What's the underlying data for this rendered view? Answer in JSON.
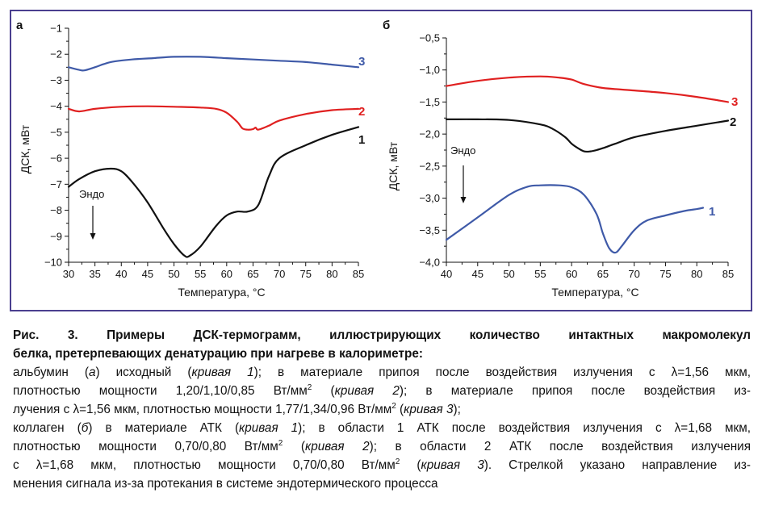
{
  "chart_data": [
    {
      "type": "line",
      "panel_label": "а",
      "xlabel": "Температура, °С",
      "ylabel": "ДСК, мВт",
      "xlim": [
        30,
        85
      ],
      "ylim": [
        -10,
        -1
      ],
      "xticks": [
        "30",
        "35",
        "40",
        "45",
        "50",
        "55",
        "60",
        "65",
        "70",
        "75",
        "80",
        "85"
      ],
      "yticks": [
        "−1",
        "−2",
        "−3",
        "−4",
        "−5",
        "−6",
        "−7",
        "−8",
        "−9",
        "−10"
      ],
      "annotation": "Эндо",
      "grid": false,
      "series": [
        {
          "label": "3",
          "color": "#3f5aa8",
          "x": [
            30,
            32,
            33,
            35,
            38,
            42,
            46,
            50,
            55,
            60,
            65,
            70,
            75,
            80,
            85
          ],
          "y": [
            -2.5,
            -2.6,
            -2.62,
            -2.5,
            -2.3,
            -2.2,
            -2.15,
            -2.1,
            -2.1,
            -2.15,
            -2.2,
            -2.25,
            -2.3,
            -2.4,
            -2.5
          ]
        },
        {
          "label": "2",
          "color": "#e02020",
          "x": [
            30,
            32,
            35,
            40,
            45,
            50,
            55,
            58,
            60,
            62,
            63,
            64,
            65,
            65.5,
            66,
            68,
            70,
            75,
            80,
            85
          ],
          "y": [
            -4.1,
            -4.2,
            -4.1,
            -4.02,
            -4.0,
            -4.02,
            -4.05,
            -4.1,
            -4.25,
            -4.6,
            -4.85,
            -4.9,
            -4.88,
            -4.82,
            -4.9,
            -4.75,
            -4.55,
            -4.3,
            -4.15,
            -4.1
          ]
        },
        {
          "label": "1",
          "color": "#111111",
          "x": [
            30,
            32,
            35,
            38,
            40,
            42,
            45,
            48,
            50,
            52,
            53,
            55,
            58,
            60,
            62,
            64,
            66,
            68,
            70,
            75,
            80,
            85
          ],
          "y": [
            -7.1,
            -6.8,
            -6.5,
            -6.4,
            -6.5,
            -6.9,
            -7.7,
            -8.7,
            -9.3,
            -9.75,
            -9.75,
            -9.4,
            -8.6,
            -8.2,
            -8.05,
            -8.05,
            -7.8,
            -6.7,
            -6.0,
            -5.5,
            -5.1,
            -4.8
          ]
        }
      ]
    },
    {
      "type": "line",
      "panel_label": "б",
      "xlabel": "Температура, °С",
      "ylabel": "ДСК, мВт",
      "xlim": [
        40,
        85
      ],
      "ylim": [
        -4.0,
        -0.5
      ],
      "xticks": [
        "40",
        "45",
        "50",
        "55",
        "60",
        "65",
        "70",
        "75",
        "80",
        "85"
      ],
      "yticks": [
        "−0,5",
        "−1,0",
        "−1,5",
        "−2,0",
        "−2,5",
        "−3,0",
        "−3,5",
        "−4,0"
      ],
      "annotation": "Эндо",
      "grid": false,
      "series": [
        {
          "label": "3",
          "color": "#e02020",
          "x": [
            40,
            45,
            50,
            55,
            58,
            60,
            62,
            65,
            70,
            75,
            80,
            85
          ],
          "y": [
            -1.25,
            -1.17,
            -1.12,
            -1.1,
            -1.12,
            -1.15,
            -1.22,
            -1.28,
            -1.32,
            -1.36,
            -1.42,
            -1.5
          ]
        },
        {
          "label": "2",
          "color": "#111111",
          "x": [
            40,
            45,
            50,
            55,
            57,
            59,
            60,
            61,
            62,
            63,
            64,
            65,
            67,
            70,
            75,
            80,
            85
          ],
          "y": [
            -1.77,
            -1.77,
            -1.78,
            -1.85,
            -1.92,
            -2.05,
            -2.15,
            -2.22,
            -2.27,
            -2.27,
            -2.25,
            -2.22,
            -2.15,
            -2.05,
            -1.95,
            -1.87,
            -1.79
          ]
        },
        {
          "label": "1",
          "color": "#3f5aa8",
          "x": [
            40,
            45,
            50,
            53,
            55,
            58,
            60,
            62,
            64,
            65,
            66,
            67,
            68,
            70,
            72,
            75,
            78,
            80,
            81
          ],
          "y": [
            -3.65,
            -3.3,
            -2.95,
            -2.82,
            -2.8,
            -2.8,
            -2.83,
            -2.95,
            -3.25,
            -3.55,
            -3.78,
            -3.85,
            -3.75,
            -3.5,
            -3.35,
            -3.27,
            -3.2,
            -3.17,
            -3.15
          ]
        }
      ]
    }
  ],
  "caption": {
    "title_line1": "Рис. 3. Примеры ДСК-термограмм, иллюстрирующих количество интактных макромолекул",
    "title_line2": "белка, претерпевающих денатурацию при нагреве в калориметре:",
    "l3_a": "альбумин (",
    "l3_b": "а",
    "l3_c": ") исходный (",
    "l3_d": "кривая 1",
    "l3_e": "); в материале припоя после воздействия излучения с λ=1,56 мкм,",
    "l4_a": "плотностью мощности 1,20/1,10/0,85 Вт/мм",
    "l4_b": " (",
    "l4_c": "кривая 2",
    "l4_d": "); в материале припоя после воздействия из-",
    "l5_a": "лучения с λ=1,56 мкм, плотностью мощности 1,77/1,34/0,96 Вт/мм",
    "l5_b": " (",
    "l5_c": "кривая 3",
    "l5_d": ");",
    "l6_a": "коллаген (",
    "l6_b": "б",
    "l6_c": ") в материале АТК (",
    "l6_d": "кривая 1",
    "l6_e": "); в области 1 АТК после воздействия излучения с λ=1,68 мкм,",
    "l7_a": "плотностью мощности 0,70/0,80 Вт/мм",
    "l7_b": " (",
    "l7_c": "кривая 2",
    "l7_d": "); в области 2 АТК после воздействия излучения",
    "l8_a": "с λ=1,68 мкм, плотностью мощности 0,70/0,80 Вт/мм",
    "l8_b": " (",
    "l8_c": "кривая 3",
    "l8_d": "). Стрелкой указано направление из-",
    "l9": "менения сигнала из-за протекания в системе эндотермического процесса",
    "sup": "2"
  }
}
